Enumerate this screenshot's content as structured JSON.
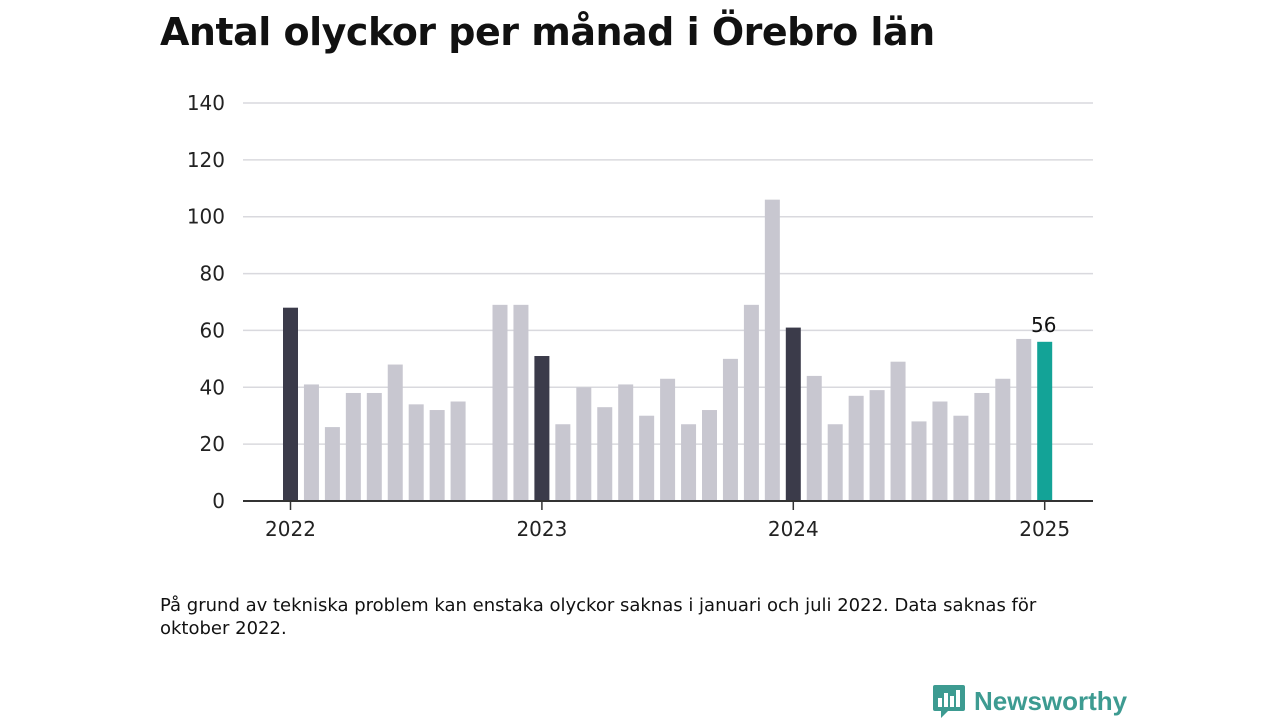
{
  "title": "Antal olyckor per månad i Örebro län",
  "note": "På grund av tekniska problem kan enstaka olyckor saknas i januari och juli 2022. Data saknas för oktober 2022.",
  "brand": {
    "name": "Newsworthy",
    "logo_icon": "newsworthy-logo-icon"
  },
  "colors": {
    "regular": "#c8c7d0",
    "january": "#3b3b4a",
    "latest": "#13a397"
  },
  "chart_data": {
    "type": "bar",
    "title": "Antal olyckor per månad i Örebro län",
    "ylim": [
      0,
      140
    ],
    "yticks": [
      0,
      20,
      40,
      60,
      80,
      100,
      120,
      140
    ],
    "grid": true,
    "xtick_labels": [
      {
        "label": "2022",
        "index": 0
      },
      {
        "label": "2023",
        "index": 12
      },
      {
        "label": "2024",
        "index": 24
      },
      {
        "label": "2025",
        "index": 36
      }
    ],
    "annotation": {
      "index": 36,
      "text": "56"
    },
    "bars": [
      {
        "period": "2022-01",
        "value": 68,
        "kind": "january"
      },
      {
        "period": "2022-02",
        "value": 41,
        "kind": "regular"
      },
      {
        "period": "2022-03",
        "value": 26,
        "kind": "regular"
      },
      {
        "period": "2022-04",
        "value": 38,
        "kind": "regular"
      },
      {
        "period": "2022-05",
        "value": 38,
        "kind": "regular"
      },
      {
        "period": "2022-06",
        "value": 48,
        "kind": "regular"
      },
      {
        "period": "2022-07",
        "value": 34,
        "kind": "regular"
      },
      {
        "period": "2022-08",
        "value": 32,
        "kind": "regular"
      },
      {
        "period": "2022-09",
        "value": 35,
        "kind": "regular"
      },
      {
        "period": "2022-10",
        "value": null,
        "kind": "missing"
      },
      {
        "period": "2022-11",
        "value": 69,
        "kind": "regular"
      },
      {
        "period": "2022-12",
        "value": 69,
        "kind": "regular"
      },
      {
        "period": "2023-01",
        "value": 51,
        "kind": "january"
      },
      {
        "period": "2023-02",
        "value": 27,
        "kind": "regular"
      },
      {
        "period": "2023-03",
        "value": 40,
        "kind": "regular"
      },
      {
        "period": "2023-04",
        "value": 33,
        "kind": "regular"
      },
      {
        "period": "2023-05",
        "value": 41,
        "kind": "regular"
      },
      {
        "period": "2023-06",
        "value": 30,
        "kind": "regular"
      },
      {
        "period": "2023-07",
        "value": 43,
        "kind": "regular"
      },
      {
        "period": "2023-08",
        "value": 27,
        "kind": "regular"
      },
      {
        "period": "2023-09",
        "value": 32,
        "kind": "regular"
      },
      {
        "period": "2023-10",
        "value": 50,
        "kind": "regular"
      },
      {
        "period": "2023-11",
        "value": 69,
        "kind": "regular"
      },
      {
        "period": "2023-12",
        "value": 106,
        "kind": "regular"
      },
      {
        "period": "2024-01",
        "value": 61,
        "kind": "january"
      },
      {
        "period": "2024-02",
        "value": 44,
        "kind": "regular"
      },
      {
        "period": "2024-03",
        "value": 27,
        "kind": "regular"
      },
      {
        "period": "2024-04",
        "value": 37,
        "kind": "regular"
      },
      {
        "period": "2024-05",
        "value": 39,
        "kind": "regular"
      },
      {
        "period": "2024-06",
        "value": 49,
        "kind": "regular"
      },
      {
        "period": "2024-07",
        "value": 28,
        "kind": "regular"
      },
      {
        "period": "2024-08",
        "value": 35,
        "kind": "regular"
      },
      {
        "period": "2024-09",
        "value": 30,
        "kind": "regular"
      },
      {
        "period": "2024-10",
        "value": 38,
        "kind": "regular"
      },
      {
        "period": "2024-11",
        "value": 43,
        "kind": "regular"
      },
      {
        "period": "2024-12",
        "value": 57,
        "kind": "regular"
      },
      {
        "period": "2025-01",
        "value": 56,
        "kind": "latest"
      }
    ]
  }
}
